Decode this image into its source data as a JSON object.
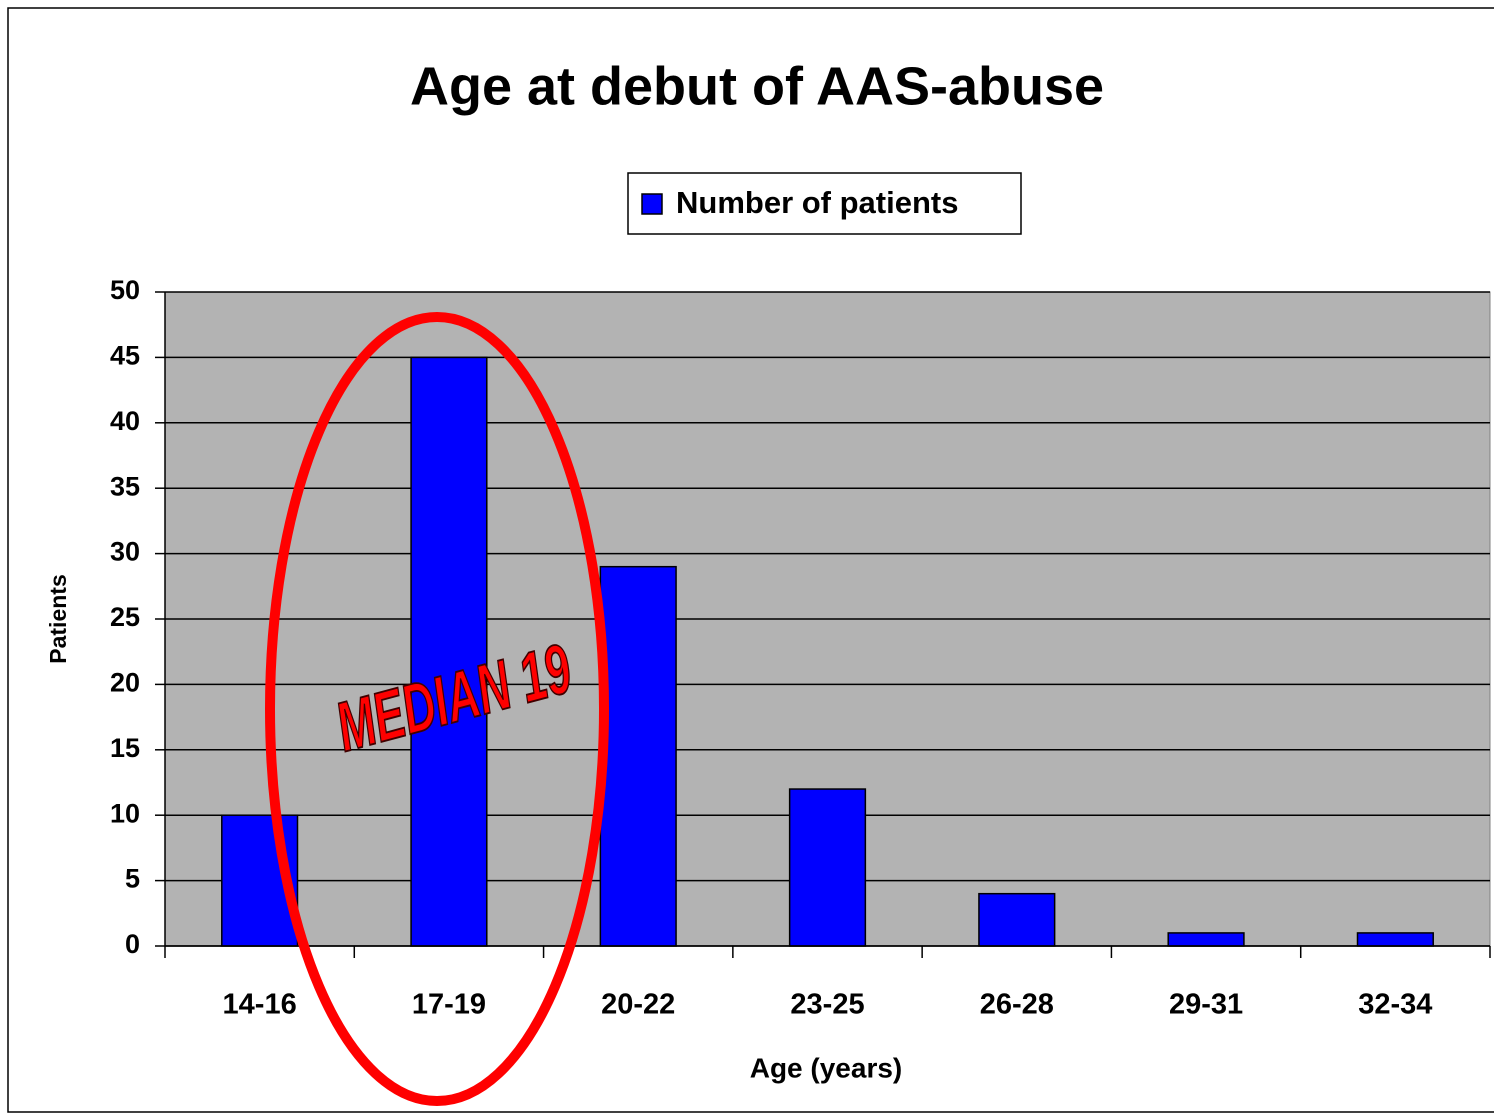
{
  "chart_data": {
    "type": "bar",
    "title": "Age at debut of AAS-abuse",
    "categories": [
      "14-16",
      "17-19",
      "20-22",
      "23-25",
      "26-28",
      "29-31",
      "32-34"
    ],
    "series": [
      {
        "name": "Number of patients",
        "color": "#0000ff",
        "values": [
          10,
          45,
          29,
          12,
          4,
          1,
          1
        ]
      }
    ],
    "ylim": [
      0,
      50
    ],
    "yticks": [
      0,
      5,
      10,
      15,
      20,
      25,
      30,
      35,
      40,
      45,
      50
    ],
    "y_label": "Patients",
    "x_label": "Age (years)",
    "annotation": "MEDIAN 19",
    "grid": true,
    "legend": "top"
  }
}
